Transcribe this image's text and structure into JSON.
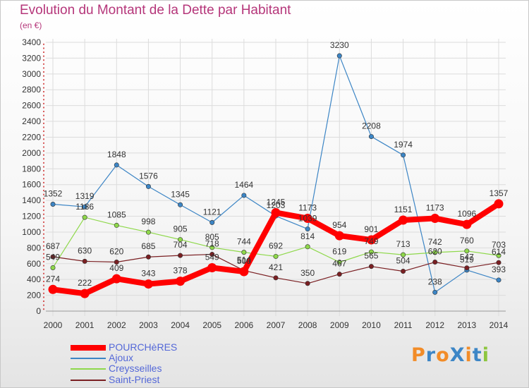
{
  "header": {
    "title": "Evolution du Montant de la Dette par Habitant",
    "subtitle": "(en €)"
  },
  "logo": {
    "text": "ProXiti",
    "colors": [
      "#f28c28",
      "#3d86c6",
      "#f28c28",
      "#3d86c6",
      "#f28c28",
      "#3d86c6",
      "#8dc63f"
    ]
  },
  "chart_data": {
    "type": "line",
    "x": [
      "2000",
      "2001",
      "2002",
      "2003",
      "2004",
      "2005",
      "2006",
      "2007",
      "2008",
      "2009",
      "2010",
      "2011",
      "2012",
      "2013",
      "2014"
    ],
    "ylim": [
      0,
      3400
    ],
    "yticks": [
      0,
      200,
      400,
      600,
      800,
      1000,
      1200,
      1400,
      1600,
      1800,
      2000,
      2200,
      2400,
      2600,
      2800,
      3000,
      3200,
      3400
    ],
    "grid": true,
    "legend_position": "bottom-left",
    "series": [
      {
        "name": "POURCHèRES",
        "color": "#ff0000",
        "values": [
          274,
          222,
          409,
          343,
          378,
          549,
          500,
          1245,
          1173,
          954,
          901,
          1151,
          1173,
          1096,
          1357
        ]
      },
      {
        "name": "Ajoux",
        "color": "#3c85c5",
        "values": [
          1352,
          1319,
          1848,
          1576,
          1345,
          1121,
          1464,
          1203,
          1039,
          3230,
          2208,
          1974,
          238,
          519,
          393
        ]
      },
      {
        "name": "Creysseilles",
        "color": "#8ed84a",
        "values": [
          549,
          1186,
          1085,
          998,
          905,
          805,
          744,
          692,
          814,
          619,
          749,
          713,
          742,
          760,
          703
        ]
      },
      {
        "name": "Saint-Priest",
        "color": "#7a1f22",
        "values": [
          687,
          630,
          620,
          685,
          704,
          718,
          514,
          421,
          350,
          467,
          565,
          504,
          620,
          547,
          614
        ]
      }
    ]
  }
}
